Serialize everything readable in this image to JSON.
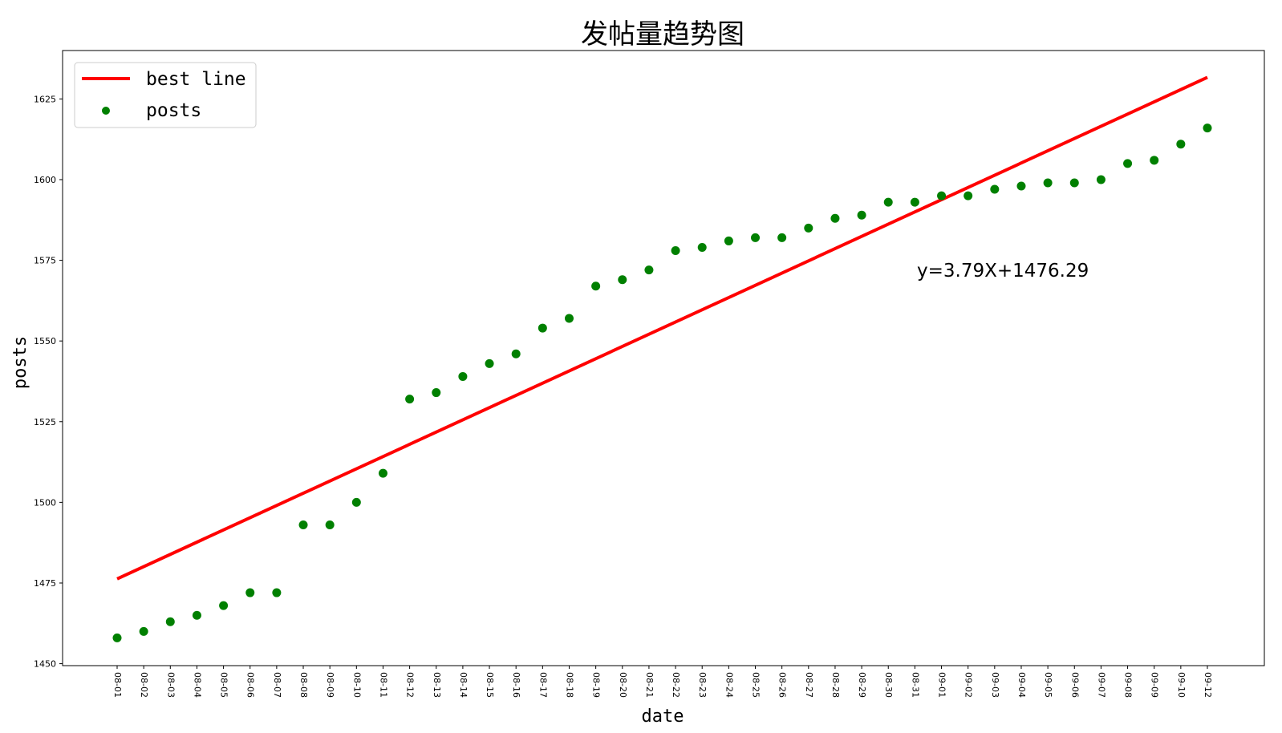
{
  "chart_data": {
    "type": "scatter",
    "title": "发帖量趋势图",
    "xlabel": "date",
    "ylabel": "posts",
    "categories": [
      "08-01",
      "08-02",
      "08-03",
      "08-04",
      "08-05",
      "08-06",
      "08-07",
      "08-08",
      "08-09",
      "08-10",
      "08-11",
      "08-12",
      "08-13",
      "08-14",
      "08-15",
      "08-16",
      "08-17",
      "08-18",
      "08-19",
      "08-20",
      "08-21",
      "08-22",
      "08-23",
      "08-24",
      "08-25",
      "08-26",
      "08-27",
      "08-28",
      "08-29",
      "08-30",
      "08-31",
      "09-01",
      "09-02",
      "09-03",
      "09-04",
      "09-05",
      "09-06",
      "09-07",
      "09-08",
      "09-09",
      "09-10",
      "09-12"
    ],
    "series": [
      {
        "name": "posts",
        "kind": "scatter",
        "color": "#008000",
        "values": [
          1458,
          1460,
          1463,
          1465,
          1468,
          1472,
          1472,
          1493,
          1493,
          1500,
          1509,
          1532,
          1534,
          1539,
          1543,
          1546,
          1554,
          1557,
          1567,
          1569,
          1572,
          1578,
          1579,
          1581,
          1582,
          1582,
          1585,
          1588,
          1589,
          1593,
          1593,
          1595,
          1595,
          1597,
          1598,
          1599,
          1599,
          1600,
          1605,
          1606,
          1611,
          1616
        ]
      },
      {
        "name": "best line",
        "kind": "line",
        "color": "#ff0000",
        "slope": 3.79,
        "intercept": 1476.29
      }
    ],
    "yticks": [
      1450,
      1475,
      1500,
      1525,
      1550,
      1575,
      1600,
      1625
    ],
    "ylim": [
      1449.4,
      1640
    ],
    "annotation": "y=3.79X+1476.29",
    "legend_position": "top-left",
    "grid": false
  }
}
